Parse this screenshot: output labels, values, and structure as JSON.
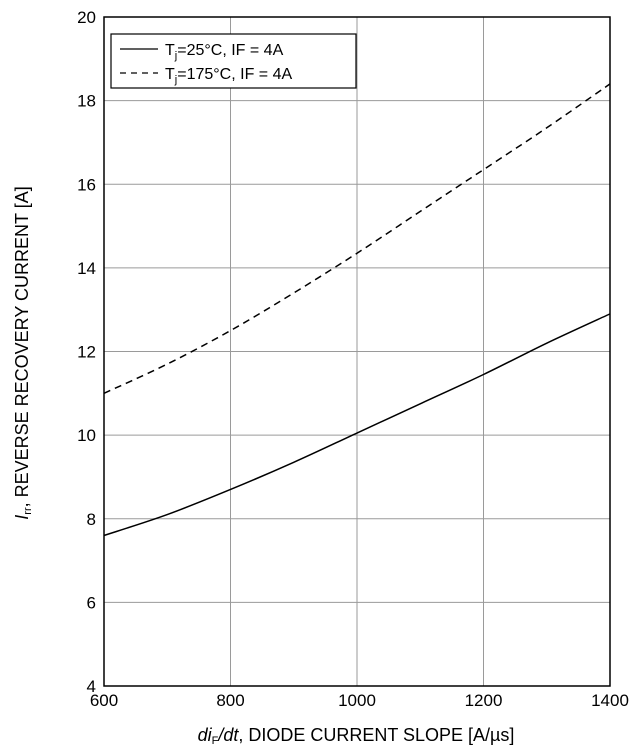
{
  "chart_data": {
    "type": "line",
    "xlabel_parts": {
      "var1": "di",
      "var1_sub": "F",
      "var2": "/dt",
      "text": ", DIODE CURRENT SLOPE [A/µs]"
    },
    "ylabel_parts": {
      "var": "I",
      "var_sub": "rr",
      "text": ", REVERSE RECOVERY CURRENT [A]"
    },
    "xlim": [
      600,
      1400
    ],
    "ylim": [
      4,
      20
    ],
    "x_ticks": [
      600,
      800,
      1000,
      1200,
      1400
    ],
    "y_ticks": [
      4,
      6,
      8,
      10,
      12,
      14,
      16,
      18,
      20
    ],
    "x_tick_labels": [
      "600",
      "800",
      "1000",
      "1200",
      "1400"
    ],
    "y_tick_labels": [
      "4",
      "6",
      "8",
      "10",
      "12",
      "14",
      "16",
      "18",
      "20"
    ],
    "grid": true,
    "legend_position": "top-left",
    "series": [
      {
        "name_parts": {
          "T": "T",
          "sub": "j",
          "rest": "=25°C, IF = 4A"
        },
        "line_style": "solid",
        "color": "#000000",
        "x": [
          600,
          700,
          800,
          900,
          1000,
          1100,
          1200,
          1300,
          1400
        ],
        "y": [
          7.6,
          8.1,
          8.7,
          9.35,
          10.05,
          10.75,
          11.45,
          12.2,
          12.9
        ]
      },
      {
        "name_parts": {
          "T": "T",
          "sub": "j",
          "rest": "=175°C, IF = 4A"
        },
        "line_style": "dashed",
        "color": "#000000",
        "x": [
          600,
          700,
          800,
          900,
          1000,
          1100,
          1200,
          1300,
          1400
        ],
        "y": [
          11.0,
          11.7,
          12.5,
          13.4,
          14.35,
          15.35,
          16.35,
          17.35,
          18.4
        ]
      }
    ]
  }
}
